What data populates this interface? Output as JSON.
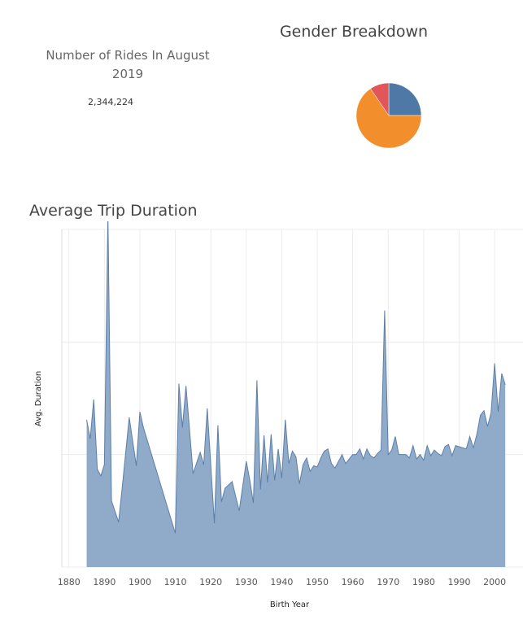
{
  "kpi": {
    "title": "Number of Rides In August 2019",
    "value": "2,344,224"
  },
  "colors": {
    "area_fill": "#8fabc9",
    "area_stroke": "#5d7fa6",
    "pie_blue": "#4e79a7",
    "pie_orange": "#f28e2b",
    "pie_red": "#e15759",
    "grid": "#ececec"
  },
  "chart_data": [
    {
      "type": "pie",
      "title": "Gender Breakdown",
      "slices": [
        {
          "color": "#4e79a7",
          "fraction": 0.25
        },
        {
          "color": "#f28e2b",
          "fraction": 0.655
        },
        {
          "color": "#e15759",
          "fraction": 0.095
        }
      ]
    },
    {
      "type": "area",
      "title": "Average Trip Duration",
      "xlabel": "Birth Year",
      "ylabel": "Avg. Duration",
      "xlim": [
        1878,
        2008
      ],
      "ylim": [
        0,
        3.0
      ],
      "grid": true,
      "x_ticks": [
        1880,
        1890,
        1900,
        1910,
        1920,
        1930,
        1940,
        1950,
        1960,
        1970,
        1980,
        1990,
        2000
      ],
      "y_gridlines": [
        0,
        1,
        2,
        3
      ],
      "x": [
        1885,
        1886,
        1887,
        1888,
        1889,
        1890,
        1891,
        1892,
        1894,
        1895,
        1897,
        1899,
        1900,
        1901,
        1910,
        1911,
        1912,
        1913,
        1915,
        1917,
        1918,
        1919,
        1921,
        1922,
        1923,
        1924,
        1926,
        1928,
        1930,
        1931,
        1932,
        1933,
        1934,
        1935,
        1936,
        1937,
        1938,
        1939,
        1940,
        1941,
        1942,
        1943,
        1944,
        1945,
        1946,
        1947,
        1948,
        1949,
        1950,
        1951,
        1952,
        1953,
        1954,
        1955,
        1956,
        1957,
        1958,
        1959,
        1960,
        1961,
        1962,
        1963,
        1964,
        1965,
        1966,
        1967,
        1968,
        1969,
        1970,
        1971,
        1972,
        1973,
        1974,
        1975,
        1976,
        1977,
        1978,
        1979,
        1980,
        1981,
        1982,
        1983,
        1984,
        1985,
        1986,
        1987,
        1988,
        1989,
        1990,
        1991,
        1992,
        1993,
        1994,
        1995,
        1996,
        1997,
        1998,
        1999,
        2000,
        2001,
        2002,
        2003
      ],
      "values": [
        1.31,
        1.14,
        1.49,
        0.87,
        0.81,
        0.91,
        3.13,
        0.59,
        0.4,
        0.7,
        1.33,
        0.9,
        1.38,
        1.24,
        0.3,
        1.63,
        1.24,
        1.61,
        0.83,
        1.02,
        0.91,
        1.41,
        0.39,
        1.26,
        0.58,
        0.7,
        0.76,
        0.5,
        0.94,
        0.77,
        0.57,
        1.66,
        0.69,
        1.17,
        0.75,
        1.18,
        0.77,
        1.05,
        0.79,
        1.31,
        0.92,
        1.03,
        0.98,
        0.74,
        0.91,
        0.97,
        0.85,
        0.9,
        0.89,
        0.97,
        1.03,
        1.05,
        0.92,
        0.88,
        0.94,
        1.0,
        0.92,
        0.96,
        1.0,
        1.0,
        1.05,
        0.96,
        1.05,
        0.99,
        0.97,
        1.01,
        1.04,
        2.28,
        1.0,
        1.04,
        1.16,
        1.0,
        1.0,
        1.0,
        0.97,
        1.08,
        0.96,
        1.0,
        0.95,
        1.08,
        0.99,
        1.04,
        1.01,
        0.99,
        1.07,
        1.09,
        0.99,
        1.08,
        1.07,
        1.06,
        1.05,
        1.16,
        1.06,
        1.18,
        1.35,
        1.39,
        1.25,
        1.37,
        1.81,
        1.38,
        1.72,
        1.62
      ]
    }
  ]
}
